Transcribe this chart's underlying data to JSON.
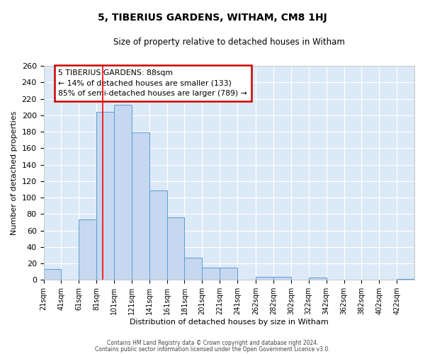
{
  "title_line1": "5, TIBERIUS GARDENS, WITHAM, CM8 1HJ",
  "title_line2": "Size of property relative to detached houses in Witham",
  "xlabel": "Distribution of detached houses by size in Witham",
  "ylabel": "Number of detached properties",
  "bar_labels": [
    "21sqm",
    "41sqm",
    "61sqm",
    "81sqm",
    "101sqm",
    "121sqm",
    "141sqm",
    "161sqm",
    "181sqm",
    "201sqm",
    "221sqm",
    "241sqm",
    "262sqm",
    "282sqm",
    "302sqm",
    "322sqm",
    "342sqm",
    "362sqm",
    "382sqm",
    "402sqm",
    "422sqm"
  ],
  "bar_values": [
    13,
    0,
    73,
    204,
    213,
    179,
    109,
    76,
    27,
    15,
    15,
    0,
    4,
    4,
    0,
    3,
    0,
    0,
    0,
    0,
    1
  ],
  "bin_edges": [
    21,
    41,
    61,
    81,
    101,
    121,
    141,
    161,
    181,
    201,
    221,
    241,
    262,
    282,
    302,
    322,
    342,
    362,
    382,
    402,
    422,
    442
  ],
  "bar_color": "#c5d8f0",
  "bar_edge_color": "#5b9bd5",
  "background_color": "#dce9f7",
  "grid_color": "#ffffff",
  "fig_background": "#ffffff",
  "ylim": [
    0,
    260
  ],
  "yticks": [
    0,
    20,
    40,
    60,
    80,
    100,
    120,
    140,
    160,
    180,
    200,
    220,
    240,
    260
  ],
  "red_line_x": 88,
  "annotation_title": "5 TIBERIUS GARDENS: 88sqm",
  "annotation_line1": "← 14% of detached houses are smaller (133)",
  "annotation_line2": "85% of semi-detached houses are larger (789) →",
  "annotation_box_color": "#ffffff",
  "annotation_box_edge": "#cc0000",
  "footer_line1": "Contains HM Land Registry data © Crown copyright and database right 2024.",
  "footer_line2": "Contains public sector information licensed under the Open Government Licence v3.0."
}
